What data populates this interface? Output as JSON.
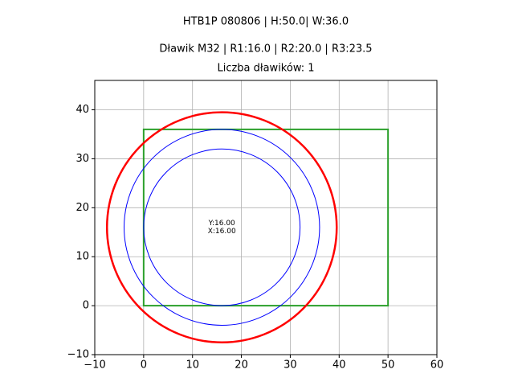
{
  "chart_data": {
    "type": "geometry",
    "title": "HTB1P 080806 | H:50.0| W:36.0",
    "subtitle": "Dławik M32 | R1:16.0 | R2:20.0 | R3:23.5",
    "subtitle2": "Liczba dławików: 1",
    "xlim": [
      -10,
      60
    ],
    "ylim": [
      -10,
      46
    ],
    "xticks": [
      {
        "value": -10,
        "label": "−10"
      },
      0,
      10,
      20,
      30,
      40,
      50,
      60
    ],
    "yticks": [
      {
        "value": -10,
        "label": "−10"
      },
      0,
      10,
      20,
      30,
      40
    ],
    "grid": true,
    "rectangle": {
      "x": 0,
      "y": 0,
      "width": 50,
      "height": 36,
      "color": "#2ca02c"
    },
    "circles": [
      {
        "cx": 16,
        "cy": 16,
        "r": 16,
        "color": "#0000ff"
      },
      {
        "cx": 16,
        "cy": 16,
        "r": 20,
        "color": "#0000ff"
      },
      {
        "cx": 16,
        "cy": 16,
        "r": 23.5,
        "color": "#ff0000"
      }
    ],
    "annotation": {
      "x": 16,
      "y": 16,
      "lines": [
        "Y:16.00",
        "X:16.00"
      ]
    }
  }
}
